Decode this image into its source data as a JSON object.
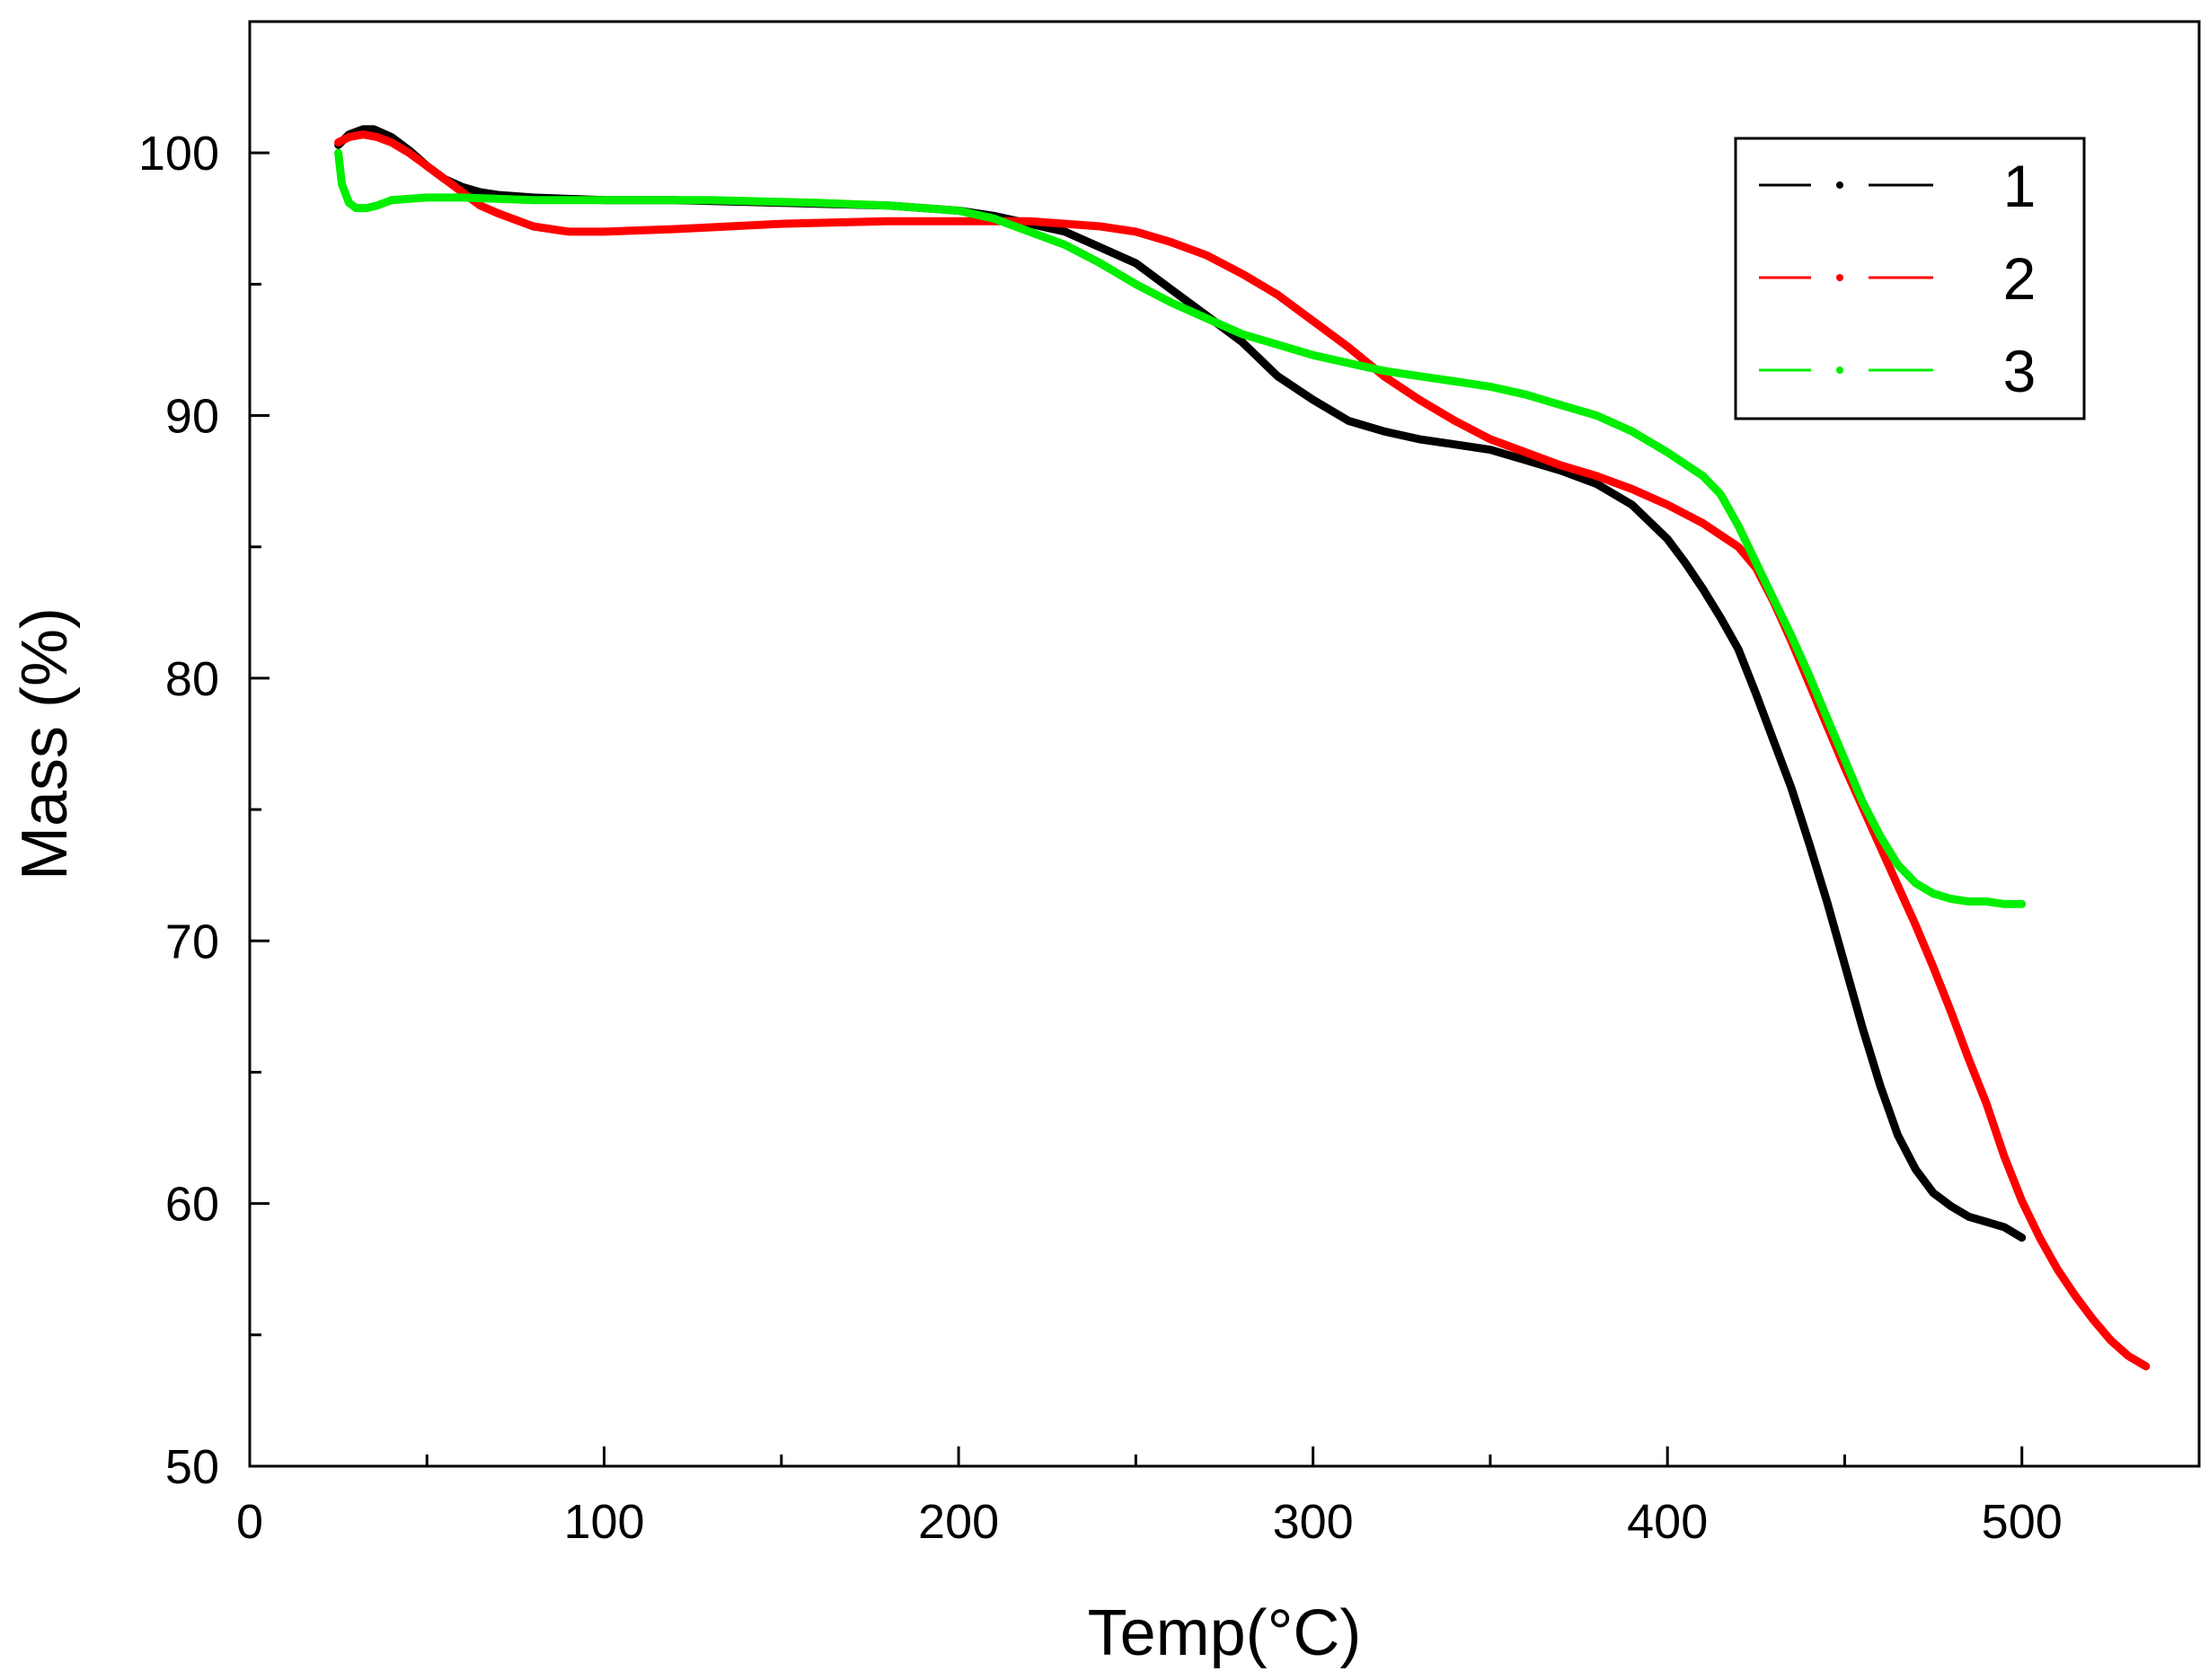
{
  "chart_data": {
    "type": "line",
    "title": "",
    "xlabel": "Temp(°C)",
    "ylabel": "Mass (%)",
    "xlim": [
      0,
      550
    ],
    "ylim": [
      50,
      105
    ],
    "x_ticks": [
      0,
      100,
      200,
      300,
      400,
      500
    ],
    "y_ticks": [
      50,
      60,
      70,
      80,
      90,
      100
    ],
    "x_minor_step": 50,
    "y_minor_step": 5,
    "grid": false,
    "legend_position": "top-right",
    "series": [
      {
        "name": "1",
        "color": "#000000",
        "points": [
          [
            25,
            100.3
          ],
          [
            28,
            100.7
          ],
          [
            32,
            100.9
          ],
          [
            35,
            100.9
          ],
          [
            40,
            100.6
          ],
          [
            45,
            100.1
          ],
          [
            50,
            99.5
          ],
          [
            55,
            99.0
          ],
          [
            60,
            98.7
          ],
          [
            65,
            98.5
          ],
          [
            70,
            98.4
          ],
          [
            80,
            98.3
          ],
          [
            100,
            98.2
          ],
          [
            120,
            98.2
          ],
          [
            150,
            98.1
          ],
          [
            180,
            98.0
          ],
          [
            200,
            97.8
          ],
          [
            210,
            97.6
          ],
          [
            220,
            97.3
          ],
          [
            230,
            97.0
          ],
          [
            240,
            96.4
          ],
          [
            250,
            95.8
          ],
          [
            260,
            94.8
          ],
          [
            270,
            93.8
          ],
          [
            280,
            92.8
          ],
          [
            290,
            91.5
          ],
          [
            300,
            90.6
          ],
          [
            310,
            89.8
          ],
          [
            320,
            89.4
          ],
          [
            330,
            89.1
          ],
          [
            340,
            88.9
          ],
          [
            350,
            88.7
          ],
          [
            360,
            88.3
          ],
          [
            370,
            87.9
          ],
          [
            380,
            87.4
          ],
          [
            390,
            86.6
          ],
          [
            400,
            85.3
          ],
          [
            405,
            84.4
          ],
          [
            410,
            83.4
          ],
          [
            415,
            82.3
          ],
          [
            420,
            81.1
          ],
          [
            425,
            79.4
          ],
          [
            430,
            77.6
          ],
          [
            435,
            75.8
          ],
          [
            440,
            73.7
          ],
          [
            445,
            71.5
          ],
          [
            450,
            69.1
          ],
          [
            455,
            66.7
          ],
          [
            460,
            64.5
          ],
          [
            465,
            62.6
          ],
          [
            470,
            61.3
          ],
          [
            475,
            60.4
          ],
          [
            480,
            59.9
          ],
          [
            485,
            59.5
          ],
          [
            490,
            59.3
          ],
          [
            495,
            59.1
          ],
          [
            500,
            58.7
          ]
        ]
      },
      {
        "name": "2",
        "color": "#ff0000",
        "points": [
          [
            25,
            100.4
          ],
          [
            28,
            100.6
          ],
          [
            32,
            100.7
          ],
          [
            36,
            100.6
          ],
          [
            40,
            100.4
          ],
          [
            45,
            100.0
          ],
          [
            50,
            99.5
          ],
          [
            55,
            99.0
          ],
          [
            60,
            98.5
          ],
          [
            65,
            98.0
          ],
          [
            70,
            97.7
          ],
          [
            80,
            97.2
          ],
          [
            90,
            97.0
          ],
          [
            100,
            97.0
          ],
          [
            120,
            97.1
          ],
          [
            150,
            97.3
          ],
          [
            180,
            97.4
          ],
          [
            200,
            97.4
          ],
          [
            220,
            97.4
          ],
          [
            240,
            97.2
          ],
          [
            250,
            97.0
          ],
          [
            260,
            96.6
          ],
          [
            270,
            96.1
          ],
          [
            280,
            95.4
          ],
          [
            290,
            94.6
          ],
          [
            300,
            93.6
          ],
          [
            310,
            92.6
          ],
          [
            320,
            91.5
          ],
          [
            330,
            90.6
          ],
          [
            340,
            89.8
          ],
          [
            350,
            89.1
          ],
          [
            360,
            88.6
          ],
          [
            370,
            88.1
          ],
          [
            380,
            87.7
          ],
          [
            390,
            87.2
          ],
          [
            400,
            86.6
          ],
          [
            410,
            85.9
          ],
          [
            420,
            85.0
          ],
          [
            425,
            84.2
          ],
          [
            430,
            82.9
          ],
          [
            435,
            81.4
          ],
          [
            440,
            79.8
          ],
          [
            445,
            78.2
          ],
          [
            450,
            76.6
          ],
          [
            455,
            75.1
          ],
          [
            460,
            73.6
          ],
          [
            465,
            72.1
          ],
          [
            470,
            70.6
          ],
          [
            475,
            69.0
          ],
          [
            480,
            67.3
          ],
          [
            485,
            65.5
          ],
          [
            490,
            63.8
          ],
          [
            495,
            61.8
          ],
          [
            500,
            60.1
          ],
          [
            505,
            58.7
          ],
          [
            510,
            57.5
          ],
          [
            515,
            56.5
          ],
          [
            520,
            55.6
          ],
          [
            525,
            54.8
          ],
          [
            530,
            54.2
          ],
          [
            535,
            53.8
          ]
        ]
      },
      {
        "name": "3",
        "color": "#00ee00",
        "points": [
          [
            25,
            100.0
          ],
          [
            26,
            98.8
          ],
          [
            28,
            98.1
          ],
          [
            30,
            97.9
          ],
          [
            33,
            97.9
          ],
          [
            36,
            98.0
          ],
          [
            40,
            98.2
          ],
          [
            50,
            98.3
          ],
          [
            60,
            98.3
          ],
          [
            80,
            98.2
          ],
          [
            100,
            98.2
          ],
          [
            130,
            98.2
          ],
          [
            160,
            98.1
          ],
          [
            180,
            98.0
          ],
          [
            190,
            97.9
          ],
          [
            200,
            97.8
          ],
          [
            210,
            97.5
          ],
          [
            220,
            97.0
          ],
          [
            230,
            96.5
          ],
          [
            240,
            95.8
          ],
          [
            250,
            95.0
          ],
          [
            260,
            94.3
          ],
          [
            270,
            93.7
          ],
          [
            280,
            93.1
          ],
          [
            290,
            92.7
          ],
          [
            300,
            92.3
          ],
          [
            310,
            92.0
          ],
          [
            320,
            91.7
          ],
          [
            330,
            91.5
          ],
          [
            340,
            91.3
          ],
          [
            350,
            91.1
          ],
          [
            360,
            90.8
          ],
          [
            370,
            90.4
          ],
          [
            380,
            90.0
          ],
          [
            390,
            89.4
          ],
          [
            400,
            88.6
          ],
          [
            410,
            87.7
          ],
          [
            415,
            87.0
          ],
          [
            420,
            85.8
          ],
          [
            425,
            84.4
          ],
          [
            430,
            83.0
          ],
          [
            435,
            81.6
          ],
          [
            440,
            80.1
          ],
          [
            445,
            78.5
          ],
          [
            450,
            76.9
          ],
          [
            455,
            75.3
          ],
          [
            460,
            74.0
          ],
          [
            465,
            72.9
          ],
          [
            470,
            72.2
          ],
          [
            475,
            71.8
          ],
          [
            480,
            71.6
          ],
          [
            485,
            71.5
          ],
          [
            490,
            71.5
          ],
          [
            495,
            71.4
          ],
          [
            500,
            71.4
          ]
        ]
      }
    ]
  }
}
